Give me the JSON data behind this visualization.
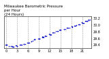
{
  "title": "Milwaukee Barometric Pressure\nper Hour\n(24 Hours)",
  "xlabel": "",
  "ylabel": "",
  "x_values": [
    0,
    1,
    2,
    3,
    4,
    5,
    6,
    7,
    8,
    9,
    10,
    11,
    12,
    13,
    14,
    15,
    16,
    17,
    18,
    19,
    20,
    21,
    22,
    23
  ],
  "y_values": [
    29.41,
    29.38,
    29.36,
    29.38,
    29.41,
    29.43,
    29.46,
    29.52,
    29.57,
    29.6,
    29.64,
    29.67,
    29.72,
    29.77,
    29.82,
    29.85,
    29.88,
    29.91,
    29.95,
    29.98,
    30.02,
    30.06,
    30.11,
    30.15
  ],
  "dot_color": "#0000cc",
  "background_color": "#ffffff",
  "grid_color": "#999999",
  "title_fontsize": 4.0,
  "tick_fontsize": 3.5,
  "ylim": [
    29.3,
    30.25
  ],
  "xlim": [
    -0.5,
    23.5
  ],
  "yticks": [
    29.4,
    29.6,
    29.8,
    30.0,
    30.2
  ],
  "ytick_labels": [
    "29.4",
    "29.6",
    "29.8",
    "30.0",
    "30.2"
  ],
  "xticks": [
    0,
    3,
    6,
    9,
    12,
    15,
    18,
    21
  ],
  "marker_size": 1.2,
  "grid_linewidth": 0.4
}
